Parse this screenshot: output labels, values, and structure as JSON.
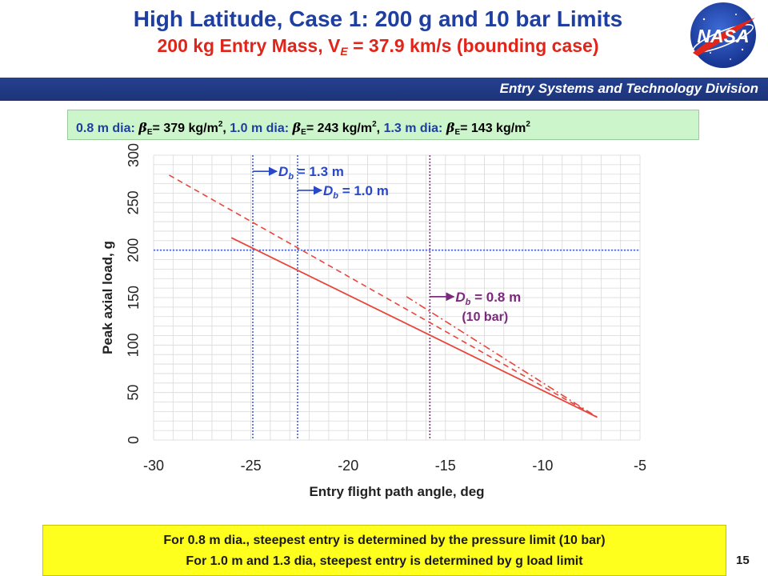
{
  "slide": {
    "title_main": "High Latitude, Case 1: 200 g and 10 bar Limits",
    "title_sub_pre": "200 kg Entry Mass, V",
    "title_sub_subscript": "E",
    "title_sub_post": " = 37.9 km/s (bounding case)",
    "division": "Entry Systems and Technology Division",
    "page_number": "15",
    "logo_text": "NASA"
  },
  "beta_box": {
    "d1_label": "0.8 m dia: ",
    "d1_value": "= 379 kg/m",
    "d2_label": "1.0 m dia: ",
    "d2_value": "= 243 kg/m",
    "d3_label": "1.3 m dia: ",
    "d3_value": "= 143 kg/m",
    "symbol": "β",
    "subscript": "E",
    "superscript": "2",
    "separator": ", "
  },
  "notes": {
    "line1": "For 0.8 m dia., steepest entry is determined by the pressure limit (10 bar)",
    "line2": "For 1.0 m and 1.3 dia, steepest entry is determined by g load limit"
  },
  "chart_data": {
    "type": "line",
    "xlabel": "Entry flight path angle, deg",
    "ylabel": "Peak axial load, g",
    "xlim": [
      -30,
      -5
    ],
    "ylim": [
      0,
      300
    ],
    "xticks": [
      -30,
      -25,
      -20,
      -15,
      -10,
      -5
    ],
    "yticks": [
      0,
      50,
      100,
      150,
      200,
      250,
      300
    ],
    "grid": true,
    "series": [
      {
        "style": "solid",
        "color": "#e8463c",
        "x": [
          -26,
          -7.2
        ],
        "y": [
          213,
          24
        ]
      },
      {
        "style": "dashed",
        "color": "#e8463c",
        "x": [
          -29.2,
          -7.2
        ],
        "y": [
          279,
          24
        ]
      },
      {
        "style": "dashdot",
        "color": "#e8463c",
        "x": [
          -17,
          -7.2
        ],
        "y": [
          151,
          24
        ]
      }
    ],
    "reference_lines": [
      {
        "orientation": "horizontal",
        "value": 200,
        "color": "#3f5fd6",
        "style": "dotted"
      },
      {
        "orientation": "vertical",
        "value": -24.9,
        "color": "#3f5fd6",
        "style": "dotted"
      },
      {
        "orientation": "vertical",
        "value": -22.6,
        "color": "#3f5fd6",
        "style": "dotted"
      },
      {
        "orientation": "vertical",
        "value": -15.8,
        "color": "#8a2f8a",
        "style": "dotted"
      }
    ],
    "annotations": [
      {
        "text_main": "D",
        "text_sub": "b",
        "text_post": " = 1.3 m",
        "color": "#2848c8",
        "arrow_from_x": -24.9,
        "at_y": 283
      },
      {
        "text_main": "D",
        "text_sub": "b",
        "text_post": " = 1.0 m",
        "color": "#2848c8",
        "arrow_from_x": -22.6,
        "at_y": 263
      },
      {
        "text_main": "D",
        "text_sub": "b",
        "text_post": " = 0.8 m",
        "text_line2": "(10 bar)",
        "color": "#7a2a7a",
        "arrow_from_x": -15.8,
        "at_y": 151
      }
    ]
  }
}
